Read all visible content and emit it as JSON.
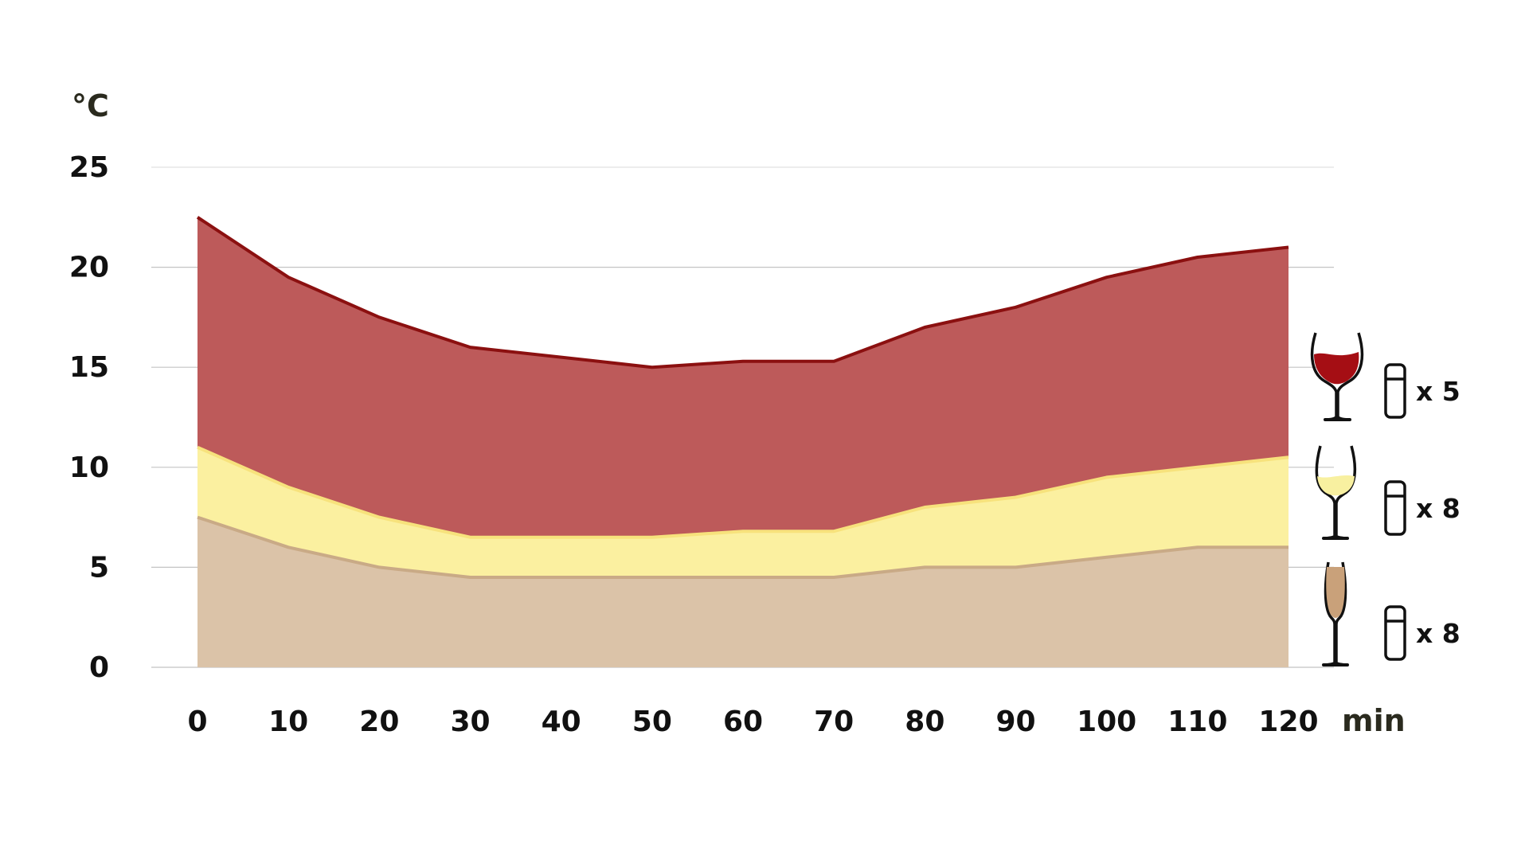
{
  "chart_data": {
    "type": "area",
    "y_unit_label": "°C",
    "x_unit_label": "min",
    "x": [
      0,
      10,
      20,
      30,
      40,
      50,
      60,
      70,
      80,
      90,
      100,
      110,
      120
    ],
    "x_tick_labels": [
      "0",
      "10",
      "20",
      "30",
      "40",
      "50",
      "60",
      "70",
      "80",
      "90",
      "100",
      "110",
      "120"
    ],
    "y_tick_labels": [
      "0",
      "5",
      "10",
      "15",
      "20",
      "25"
    ],
    "ylim": [
      0,
      25
    ],
    "xlim": [
      0,
      120
    ],
    "grid": true,
    "series": [
      {
        "key": "red",
        "values": [
          22.5,
          19.5,
          17.5,
          16.0,
          15.5,
          15.0,
          15.3,
          15.3,
          17.0,
          18.0,
          19.5,
          20.5,
          21.0
        ],
        "color": "#bd5a5a",
        "line_color": "#8b1010",
        "legend": "x 5",
        "icon": "red-wine-glass-icon"
      },
      {
        "key": "white",
        "values": [
          11.0,
          9.0,
          7.5,
          6.5,
          6.5,
          6.5,
          6.8,
          6.8,
          8.0,
          8.5,
          9.5,
          10.0,
          10.5
        ],
        "color": "#fbf0a0",
        "line_color": "#f7e27c",
        "legend": "x 8",
        "icon": "white-wine-glass-icon"
      },
      {
        "key": "sparkling",
        "values": [
          7.5,
          6.0,
          5.0,
          4.5,
          4.5,
          4.5,
          4.5,
          4.5,
          5.0,
          5.0,
          5.5,
          6.0,
          6.0
        ],
        "color": "#dbc3a8",
        "line_color": "#c9aa86",
        "legend": "x 8",
        "icon": "sparkling-wine-glass-icon"
      }
    ]
  }
}
